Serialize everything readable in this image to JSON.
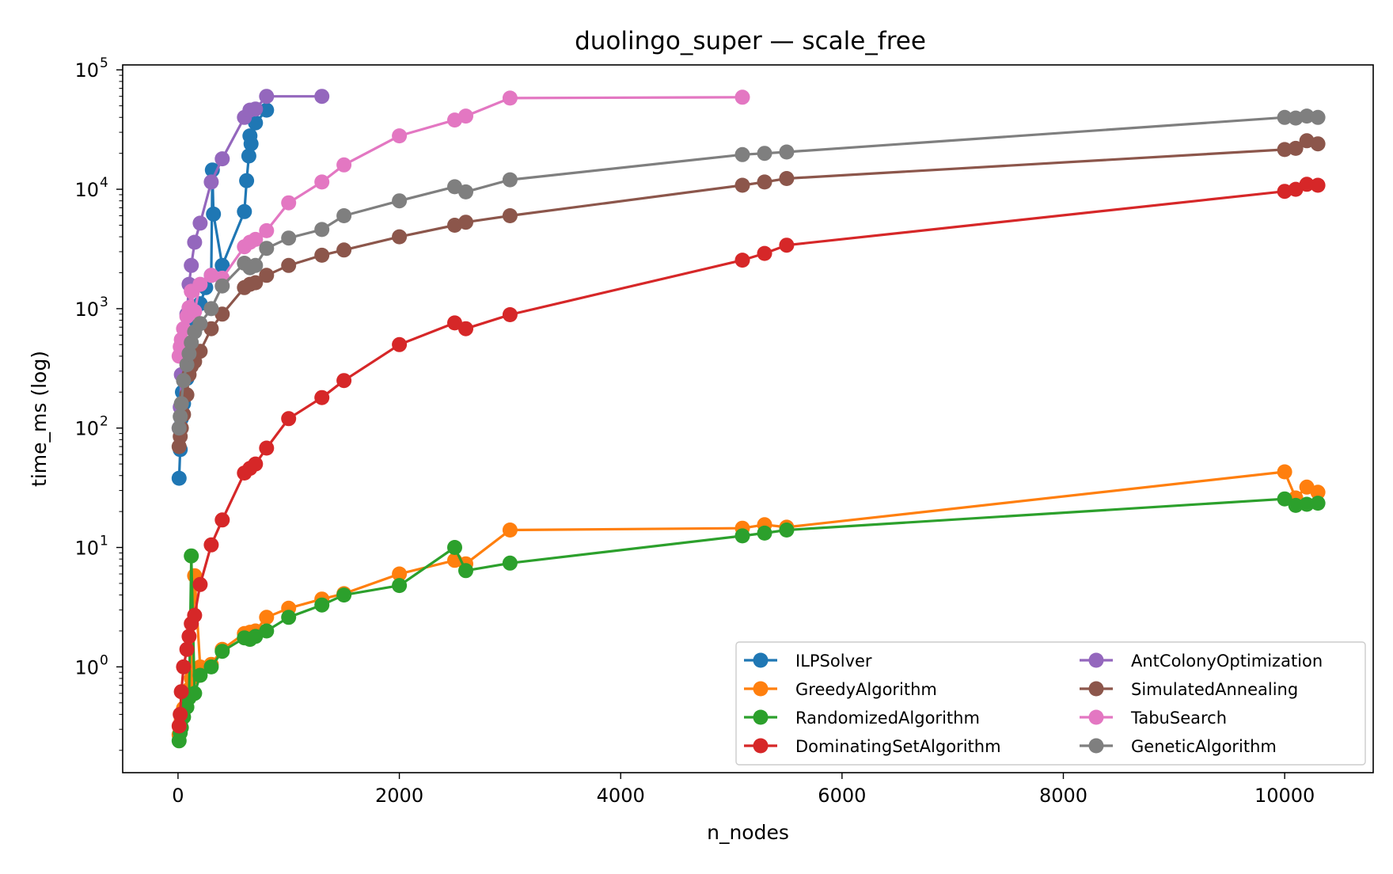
{
  "chart_data": {
    "type": "line",
    "title": "duolingo_super — scale_free",
    "xlabel": "n_nodes",
    "ylabel": "time_ms (log)",
    "xscale": "linear",
    "yscale": "log",
    "xlim": [
      -500,
      10800
    ],
    "ylim": [
      0.13,
      110000
    ],
    "xticks": [
      0,
      2000,
      4000,
      6000,
      8000,
      10000
    ],
    "xtick_labels": [
      "0",
      "2000",
      "4000",
      "6000",
      "8000",
      "10000"
    ],
    "yticks": [
      1,
      10,
      100,
      1000,
      10000,
      100000
    ],
    "ytick_labels": [
      {
        "base": "10",
        "exp": "0"
      },
      {
        "base": "10",
        "exp": "1"
      },
      {
        "base": "10",
        "exp": "2"
      },
      {
        "base": "10",
        "exp": "3"
      },
      {
        "base": "10",
        "exp": "4"
      },
      {
        "base": "10",
        "exp": "5"
      }
    ],
    "grid": false,
    "legend": {
      "position": "lower-right",
      "columns": 2
    },
    "series": [
      {
        "name": "ILPSolver",
        "color": "#1f77b4",
        "x": [
          10,
          20,
          30,
          40,
          50,
          80,
          100,
          150,
          200,
          250,
          300,
          310,
          320,
          400,
          600,
          620,
          640,
          650,
          660,
          700,
          800
        ],
        "y": [
          38,
          66,
          120,
          200,
          160,
          260,
          350,
          700,
          1100,
          1500,
          1900,
          14500,
          6200,
          2300,
          6500,
          11800,
          19000,
          28000,
          24000,
          36000,
          46000
        ]
      },
      {
        "name": "GreedyAlgorithm",
        "color": "#ff7f0e",
        "x": [
          10,
          20,
          30,
          50,
          80,
          100,
          120,
          150,
          200,
          300,
          400,
          600,
          650,
          700,
          800,
          1000,
          1300,
          1500,
          2000,
          2500,
          2600,
          3000,
          5100,
          5300,
          5500,
          10000,
          10100,
          10200,
          10300
        ],
        "y": [
          0.27,
          0.32,
          0.36,
          0.45,
          0.55,
          0.65,
          0.8,
          5.8,
          1.0,
          1.05,
          1.4,
          1.9,
          1.95,
          2.0,
          2.6,
          3.1,
          3.7,
          4.1,
          6.0,
          7.8,
          7.3,
          14,
          14.5,
          15.5,
          14.8,
          43,
          26,
          32,
          29
        ]
      },
      {
        "name": "RandomizedAlgorithm",
        "color": "#2ca02c",
        "x": [
          10,
          20,
          30,
          50,
          80,
          100,
          120,
          150,
          200,
          300,
          400,
          600,
          650,
          700,
          800,
          1000,
          1300,
          1500,
          2000,
          2500,
          2600,
          3000,
          5100,
          5300,
          5500,
          10000,
          10100,
          10200,
          10300
        ],
        "y": [
          0.24,
          0.28,
          0.31,
          0.38,
          0.46,
          0.55,
          8.5,
          0.6,
          0.85,
          1.0,
          1.35,
          1.75,
          1.7,
          1.8,
          2.0,
          2.6,
          3.3,
          4.0,
          4.8,
          10,
          6.4,
          7.4,
          12.5,
          13.2,
          14,
          25.5,
          22.5,
          23,
          23.5
        ]
      },
      {
        "name": "DominatingSetAlgorithm",
        "color": "#d62728",
        "x": [
          10,
          20,
          30,
          50,
          80,
          100,
          120,
          150,
          200,
          300,
          400,
          600,
          650,
          700,
          800,
          1000,
          1300,
          1500,
          2000,
          2500,
          2600,
          3000,
          5100,
          5300,
          5500,
          10000,
          10100,
          10200,
          10300
        ],
        "y": [
          0.32,
          0.4,
          0.62,
          1.0,
          1.4,
          1.8,
          2.3,
          2.7,
          4.9,
          10.5,
          17,
          42,
          46,
          50,
          68,
          120,
          180,
          250,
          500,
          760,
          680,
          890,
          2550,
          2900,
          3400,
          9600,
          10000,
          11000,
          10800
        ]
      },
      {
        "name": "AntColonyOptimization",
        "color": "#9467bd",
        "x": [
          10,
          20,
          30,
          50,
          80,
          100,
          120,
          150,
          200,
          300,
          400,
          600,
          650,
          700,
          800,
          1300
        ],
        "y": [
          100,
          150,
          280,
          450,
          900,
          1600,
          2300,
          3600,
          5200,
          11500,
          18000,
          40000,
          46000,
          47000,
          60000,
          60000
        ]
      },
      {
        "name": "SimulatedAnnealing",
        "color": "#8c564b",
        "x": [
          10,
          20,
          30,
          50,
          80,
          100,
          120,
          150,
          200,
          300,
          400,
          600,
          650,
          700,
          800,
          1000,
          1300,
          1500,
          2000,
          2500,
          2600,
          3000,
          5100,
          5300,
          5500,
          10000,
          10100,
          10200,
          10300
        ],
        "y": [
          70,
          85,
          100,
          130,
          190,
          280,
          330,
          360,
          440,
          680,
          900,
          1500,
          1600,
          1650,
          1900,
          2300,
          2800,
          3100,
          4000,
          5000,
          5300,
          6000,
          10800,
          11500,
          12300,
          21500,
          22000,
          25500,
          24000
        ]
      },
      {
        "name": "TabuSearch",
        "color": "#e377c2",
        "x": [
          10,
          20,
          30,
          50,
          80,
          100,
          120,
          150,
          200,
          300,
          400,
          600,
          650,
          700,
          800,
          1000,
          1300,
          1500,
          2000,
          2500,
          2600,
          3000,
          5100
        ],
        "y": [
          400,
          480,
          550,
          680,
          860,
          1020,
          1400,
          950,
          1600,
          1900,
          1800,
          3300,
          3600,
          3800,
          4500,
          7700,
          11500,
          16000,
          28000,
          38000,
          41000,
          58000,
          59000
        ]
      },
      {
        "name": "GeneticAlgorithm",
        "color": "#7f7f7f",
        "x": [
          10,
          20,
          30,
          50,
          80,
          100,
          120,
          150,
          200,
          300,
          400,
          600,
          650,
          700,
          800,
          1000,
          1300,
          1500,
          2000,
          2500,
          2600,
          3000,
          5100,
          5300,
          5500,
          10000,
          10100,
          10200,
          10300
        ],
        "y": [
          100,
          125,
          160,
          250,
          340,
          420,
          520,
          640,
          750,
          1000,
          1550,
          2400,
          2200,
          2300,
          3200,
          3900,
          4600,
          6000,
          8000,
          10500,
          9500,
          12000,
          19500,
          20000,
          20500,
          40000,
          39500,
          41000,
          40000
        ]
      }
    ]
  }
}
